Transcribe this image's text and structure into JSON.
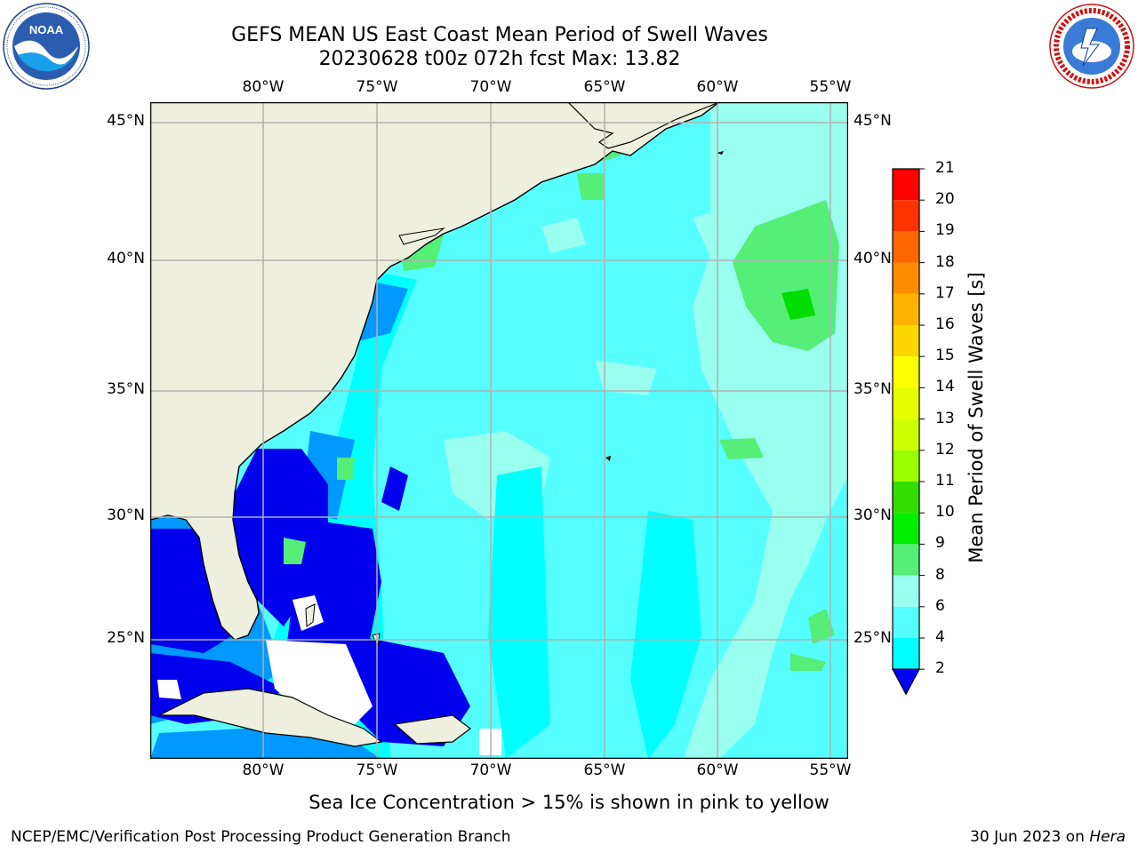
{
  "title": {
    "line1": "GEFS MEAN US East Coast Mean Period of Swell Waves",
    "line2": "20230628 t00z 072h fcst   Max: 13.82"
  },
  "logos": {
    "left": {
      "text": "NOAA",
      "icon": "noaa-logo-icon"
    },
    "right": {
      "text": "NATIONAL WEATHER SERVICE",
      "icon": "nws-logo-icon"
    }
  },
  "map": {
    "lon_ticks": [
      "80°W",
      "75°W",
      "70°W",
      "65°W",
      "60°W",
      "55°W"
    ],
    "lat_ticks": [
      "45°N",
      "40°N",
      "35°N",
      "30°N",
      "25°N"
    ],
    "land_color": "#efefdf",
    "missing_color": "#ffffff",
    "grid": true
  },
  "colorbar": {
    "label": "Mean Period of Swell Waves [s]",
    "ticks": [
      "21",
      "20",
      "19",
      "18",
      "17",
      "16",
      "15",
      "14",
      "13",
      "12",
      "11",
      "10",
      "9",
      "8",
      "6",
      "4",
      "2"
    ],
    "colors": [
      "#ff0000",
      "#ff3300",
      "#ff6600",
      "#ff8c00",
      "#ffb300",
      "#ffd700",
      "#ffff00",
      "#e6ff00",
      "#ccff00",
      "#99ff00",
      "#33dd00",
      "#00ee00",
      "#55ee77",
      "#99ffee",
      "#55ffff",
      "#00ffff",
      "#00aaff",
      "#0000ff"
    ]
  },
  "note": "Sea Ice Concentration > 15% is shown in pink to yellow",
  "footer": {
    "left": "NCEP/EMC/Verification Post Processing Product Generation Branch",
    "date": "30 Jun 2023 on ",
    "machine": "Hera"
  }
}
